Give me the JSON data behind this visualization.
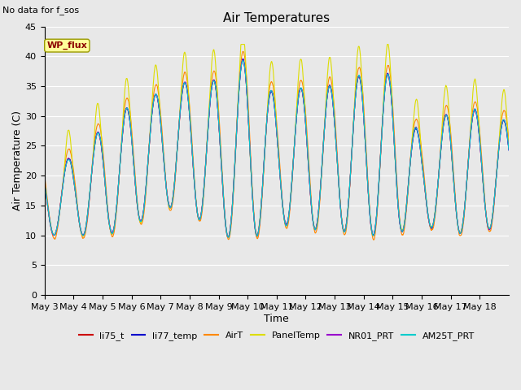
{
  "title": "Air Temperatures",
  "xlabel": "Time",
  "ylabel": "Air Temperature (C)",
  "note": "No data for f_sos",
  "annotation": "WP_flux",
  "ylim": [
    0,
    45
  ],
  "yticks": [
    0,
    5,
    10,
    15,
    20,
    25,
    30,
    35,
    40,
    45
  ],
  "xtick_labels": [
    "May 3",
    "May 4",
    "May 5",
    "May 6",
    "May 7",
    "May 8",
    "May 9",
    "May 10",
    "May 11",
    "May 12",
    "May 13",
    "May 14",
    "May 15",
    "May 16",
    "May 17",
    "May 18"
  ],
  "series_order": [
    "li75_t",
    "li77_temp",
    "AirT",
    "PanelTemp",
    "NR01_PRT",
    "AM25T_PRT"
  ],
  "series": {
    "li75_t": {
      "color": "#cc0000",
      "lw": 0.8
    },
    "li77_temp": {
      "color": "#0000cc",
      "lw": 0.8
    },
    "AirT": {
      "color": "#ff8800",
      "lw": 0.8
    },
    "PanelTemp": {
      "color": "#dddd00",
      "lw": 0.8
    },
    "NR01_PRT": {
      "color": "#9900cc",
      "lw": 0.8
    },
    "AM25T_PRT": {
      "color": "#00cccc",
      "lw": 0.8
    }
  },
  "fig_facecolor": "#e8e8e8",
  "plot_facecolor": "#e8e8e8",
  "title_fontsize": 11,
  "axis_label_fontsize": 9,
  "tick_fontsize": 8,
  "legend_fontsize": 8
}
